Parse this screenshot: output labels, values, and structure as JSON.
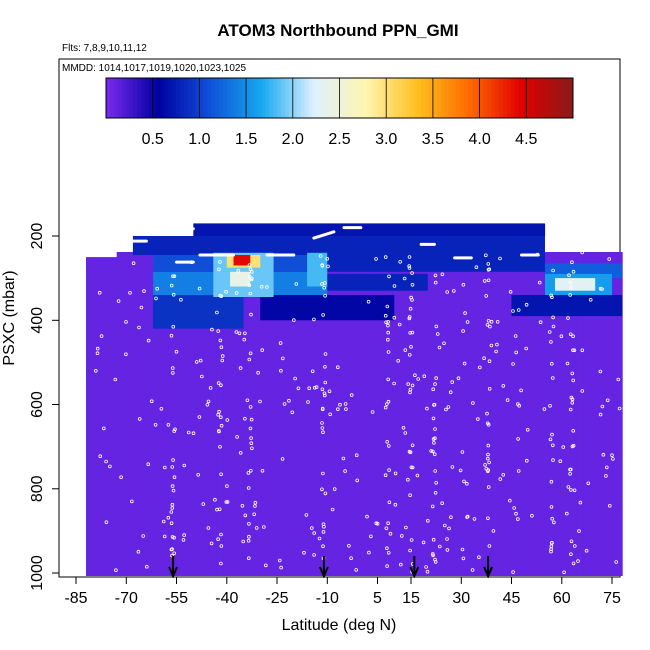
{
  "chart_data": {
    "type": "heatmap",
    "title": "ATOM3 Northbound PPN_GMI",
    "subtitle_flights": "Flts: 7,8,9,10,11,12",
    "subtitle_dates": "MMDD: 1014,1017,1019,1020,1023,1025",
    "xlabel": "Latitude (deg N)",
    "ylabel": "PSXC (mbar)",
    "x_ticks": [
      -85,
      -70,
      -55,
      -40,
      -25,
      -10,
      5,
      15,
      30,
      45,
      60,
      75
    ],
    "y_ticks": [
      200,
      400,
      600,
      800,
      1000
    ],
    "xlim": [
      -85,
      82
    ],
    "ylim": [
      1010,
      70
    ],
    "y_reversed": true,
    "colorbar": {
      "ticks": [
        0.5,
        1.0,
        1.5,
        2.0,
        2.5,
        3.0,
        3.5,
        4.0,
        4.5
      ],
      "range": [
        0.0,
        5.0
      ],
      "colors": [
        "#7B2BF0",
        "#0000A0",
        "#1050D8",
        "#15A8F0",
        "#DDF0FF",
        "#FFF6B0",
        "#FFC020",
        "#FF6A00",
        "#E00000",
        "#8A1A1A"
      ]
    },
    "background_value": 0.1,
    "regions": [
      {
        "lat": [
          -62,
          -35
        ],
        "p": [
          340,
          420
        ],
        "value": 0.9
      },
      {
        "lat": [
          -30,
          10
        ],
        "p": [
          340,
          400
        ],
        "value": 0.6
      },
      {
        "lat": [
          -62,
          -10
        ],
        "p": [
          285,
          340
        ],
        "value": 1.4
      },
      {
        "lat": [
          -10,
          20
        ],
        "p": [
          290,
          330
        ],
        "value": 0.8
      },
      {
        "lat": [
          -62,
          -10
        ],
        "p": [
          245,
          285
        ],
        "value": 1.1
      },
      {
        "lat": [
          -10,
          55
        ],
        "p": [
          245,
          285
        ],
        "value": 0.8
      },
      {
        "lat": [
          55,
          78
        ],
        "p": [
          265,
          300
        ],
        "value": 1.2
      },
      {
        "lat": [
          -68,
          55
        ],
        "p": [
          200,
          245
        ],
        "value": 0.8
      },
      {
        "lat": [
          -50,
          55
        ],
        "p": [
          170,
          200
        ],
        "value": 0.7
      },
      {
        "lat": [
          -44,
          -26
        ],
        "p": [
          240,
          345
        ],
        "value": 1.9
      },
      {
        "lat": [
          -16,
          -10
        ],
        "p": [
          240,
          320
        ],
        "value": 1.8
      },
      {
        "lat": [
          -40,
          -30
        ],
        "p": [
          245,
          275
        ],
        "value": 3.0
      },
      {
        "lat": [
          -38,
          -33
        ],
        "p": [
          245,
          270
        ],
        "value": 4.4
      },
      {
        "lat": [
          -39,
          -33
        ],
        "p": [
          285,
          320
        ],
        "value": 2.4
      },
      {
        "lat": [
          55,
          75
        ],
        "p": [
          290,
          340
        ],
        "value": 1.6
      },
      {
        "lat": [
          58,
          70
        ],
        "p": [
          300,
          330
        ],
        "value": 2.3
      },
      {
        "lat": [
          45,
          78
        ],
        "p": [
          340,
          390
        ],
        "value": 0.7
      }
    ],
    "markers": [
      -56,
      -11,
      16,
      38
    ]
  }
}
